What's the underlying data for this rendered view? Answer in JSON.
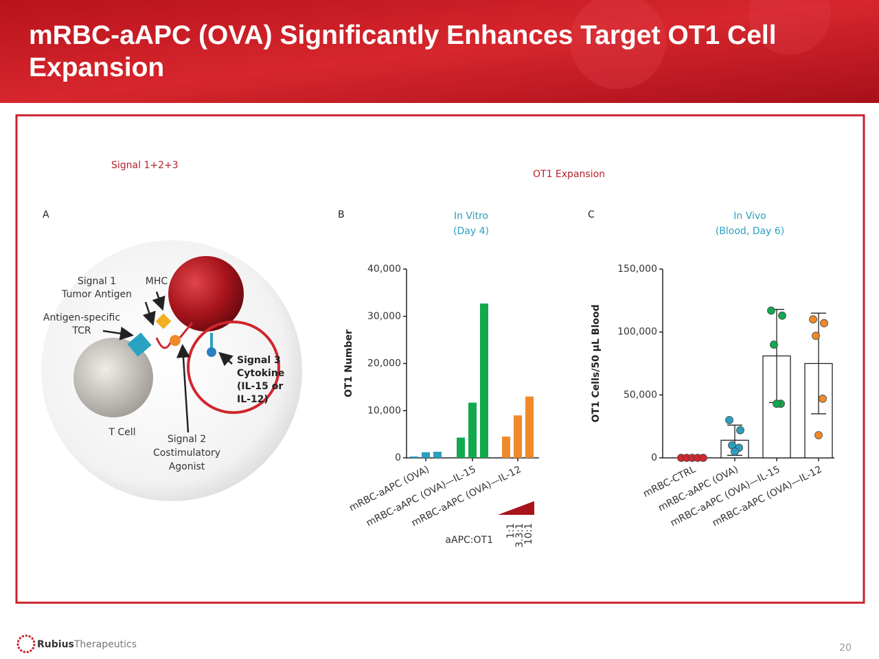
{
  "header": {
    "title": "mRBC-aAPC (OVA) Significantly Enhances Target OT1 Cell Expansion"
  },
  "panel": {
    "heading_left": "Signal 1+2+3",
    "heading_right": "OT1 Expansion"
  },
  "diagram": {
    "letter": "A",
    "signal1": [
      "Signal 1",
      "Tumor Antigen"
    ],
    "mhc": "MHC",
    "tcr": [
      "Antigen-specific",
      "TCR"
    ],
    "signal3": [
      "Signal 3",
      "Cytokine",
      "(IL-15 or",
      "IL-12)"
    ],
    "tcell": "T Cell",
    "signal2": [
      "Signal 2",
      "Costimulatory",
      "Agonist"
    ]
  },
  "chart_data": [
    {
      "type": "bar",
      "panel_label": "B",
      "subtitle": [
        "In Vitro",
        "(Day 4)"
      ],
      "ylabel": "OT1 Number",
      "categories": [
        "mRBC-aAPC (OVA)",
        "mRBC-aAPC (OVA)—IL-15",
        "mRBC-aAPC (OVA)—IL-12"
      ],
      "colors": [
        "#2a9fc0",
        "#12a84e",
        "#ee8a2a"
      ],
      "ratio_label": "aAPC:OT1",
      "series": [
        {
          "name": "1:1",
          "values": [
            300,
            4300,
            4500
          ]
        },
        {
          "name": "3.3:1",
          "values": [
            1200,
            11700,
            9000
          ]
        },
        {
          "name": "10:1",
          "values": [
            1300,
            32700,
            13000
          ]
        }
      ],
      "ylim": [
        0,
        40000
      ],
      "yticks": [
        0,
        {
          "value": 10000,
          "label": "10,000"
        },
        {
          "value": 20000,
          "label": "20,000"
        },
        {
          "value": 30000,
          "label": "30,000"
        },
        {
          "value": 40000,
          "label": "40,000"
        }
      ]
    },
    {
      "type": "bar",
      "panel_label": "C",
      "subtitle": [
        "In Vivo",
        "(Blood, Day 6)"
      ],
      "ylabel": "OT1 Cells/50 µL Blood",
      "categories": [
        "mRBC-CTRL",
        "mRBC-aAPC (OVA)",
        "mRBC-aAPC (OVA)—IL-15",
        "mRBC-aAPC (OVA)—IL-12"
      ],
      "colors": [
        "#d0272e",
        "#2a9fc0",
        "#12a84e",
        "#ee8a2a"
      ],
      "values": [
        0,
        14000,
        81000,
        75000
      ],
      "errors": [
        0,
        12000,
        37000,
        40000
      ],
      "points": [
        [
          0,
          0,
          0,
          0,
          0
        ],
        [
          30000,
          22000,
          10000,
          8000,
          5000
        ],
        [
          117000,
          113000,
          90000,
          43000,
          43000
        ],
        [
          110000,
          107000,
          97000,
          47000,
          18000
        ]
      ],
      "ylim": [
        0,
        150000
      ],
      "yticks": [
        0,
        {
          "value": 50000,
          "label": "50,000"
        },
        {
          "value": 100000,
          "label": "100,000"
        },
        {
          "value": 150000,
          "label": "150,000"
        }
      ]
    }
  ],
  "footer": {
    "logo_bold": "Rubius",
    "logo_rest": "Therapeutics",
    "page": "20"
  }
}
